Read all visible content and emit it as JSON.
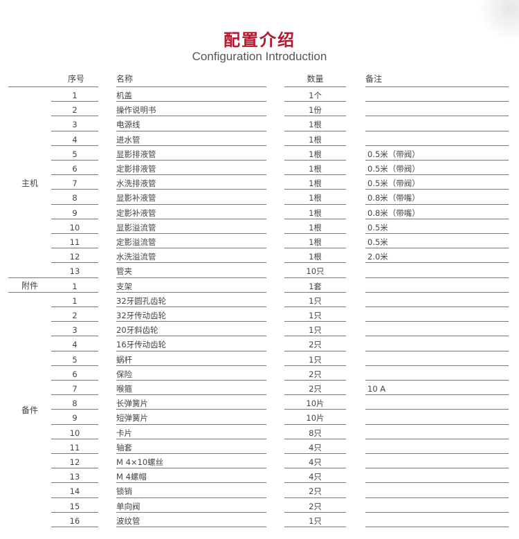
{
  "title": "配置介绍",
  "subtitle": "Configuration Introduction",
  "headers": {
    "seq": "序号",
    "name": "名称",
    "qty": "数量",
    "note": "备注"
  },
  "groups": [
    {
      "label": "主机",
      "start": 0,
      "count": 13
    },
    {
      "label": "附件",
      "start": 13,
      "count": 1
    },
    {
      "label": "备件",
      "start": 14,
      "count": 16
    }
  ],
  "rows": [
    {
      "seq": "1",
      "name": "机盖",
      "qty": "1个",
      "note": ""
    },
    {
      "seq": "2",
      "name": "操作说明书",
      "qty": "1份",
      "note": ""
    },
    {
      "seq": "3",
      "name": "电源线",
      "qty": "1根",
      "note": ""
    },
    {
      "seq": "4",
      "name": "进水管",
      "qty": "1根",
      "note": ""
    },
    {
      "seq": "5",
      "name": "显影排液管",
      "qty": "1根",
      "note": "0.5米（带阀）"
    },
    {
      "seq": "6",
      "name": "定影排液管",
      "qty": "1根",
      "note": "0.5米（带阀）"
    },
    {
      "seq": "7",
      "name": "水洗排液管",
      "qty": "1根",
      "note": "0.5米（带阀）"
    },
    {
      "seq": "8",
      "name": "显影补液管",
      "qty": "1根",
      "note": "0.8米（带嘴）"
    },
    {
      "seq": "9",
      "name": "定影补液管",
      "qty": "1根",
      "note": "0.8米（带嘴）"
    },
    {
      "seq": "10",
      "name": "显影溢流管",
      "qty": "1根",
      "note": "0.5米"
    },
    {
      "seq": "11",
      "name": "定影溢流管",
      "qty": "1根",
      "note": "0.5米"
    },
    {
      "seq": "12",
      "name": "水洗溢流管",
      "qty": "1根",
      "note": "2.0米"
    },
    {
      "seq": "13",
      "name": "管夹",
      "qty": "10只",
      "note": ""
    },
    {
      "seq": "1",
      "name": "支架",
      "qty": "1套",
      "note": ""
    },
    {
      "seq": "1",
      "name": "32牙圆孔齿轮",
      "qty": "1只",
      "note": ""
    },
    {
      "seq": "2",
      "name": "32牙传动齿轮",
      "qty": "1只",
      "note": ""
    },
    {
      "seq": "3",
      "name": "20牙斜齿轮",
      "qty": "1只",
      "note": ""
    },
    {
      "seq": "4",
      "name": "16牙传动齿轮",
      "qty": "2只",
      "note": ""
    },
    {
      "seq": "5",
      "name": "蜗杆",
      "qty": "1只",
      "note": ""
    },
    {
      "seq": "6",
      "name": "保险",
      "qty": "2只",
      "note": ""
    },
    {
      "seq": "7",
      "name": "喉箍",
      "qty": "2只",
      "note": "10 A"
    },
    {
      "seq": "8",
      "name": "长弹簧片",
      "qty": "10片",
      "note": ""
    },
    {
      "seq": "9",
      "name": "短弹簧片",
      "qty": "10片",
      "note": ""
    },
    {
      "seq": "10",
      "name": "卡片",
      "qty": "8只",
      "note": ""
    },
    {
      "seq": "11",
      "name": "轴套",
      "qty": "4只",
      "note": ""
    },
    {
      "seq": "12",
      "name": "M 4×10螺丝",
      "qty": "4只",
      "note": ""
    },
    {
      "seq": "13",
      "name": "M 4螺帽",
      "qty": "4只",
      "note": ""
    },
    {
      "seq": "14",
      "name": "锁销",
      "qty": "2只",
      "note": ""
    },
    {
      "seq": "15",
      "name": "单向阀",
      "qty": "2只",
      "note": ""
    },
    {
      "seq": "16",
      "name": "波纹管",
      "qty": "1只",
      "note": ""
    }
  ]
}
